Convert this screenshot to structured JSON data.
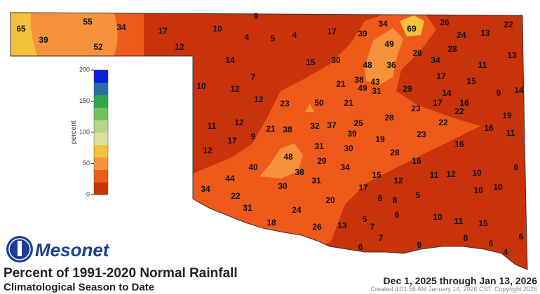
{
  "logo": "Mesonet",
  "title": "Percent of 1991-2020 Normal Rainfall",
  "subtitle": "Climatological Season to Date",
  "date_range": "Dec 1, 2025 through Jan 13, 2026",
  "created": "Created 4:01:58 AM January 14, 2026 CST. Copyright 2026",
  "legend": {
    "label": "percent",
    "range": [
      0,
      200
    ],
    "ticks": [
      0,
      50,
      100,
      150,
      200
    ],
    "colors": [
      "#c8330b",
      "#ef5a1a",
      "#f7923a",
      "#f2c23a",
      "#e1dea0",
      "#b5d58a",
      "#6cc35a",
      "#2ea84a",
      "#2a6fa8",
      "#0a1fe0"
    ]
  },
  "stations": [
    65,
    39,
    55,
    34,
    52,
    17,
    12,
    10,
    9,
    4,
    5,
    4,
    17,
    39,
    34,
    69,
    26,
    24,
    13,
    22,
    49,
    28,
    13,
    14,
    15,
    30,
    48,
    36,
    28,
    34,
    11,
    7,
    38,
    43,
    21,
    49,
    31,
    29,
    17,
    15,
    10,
    12,
    14,
    9,
    14,
    12,
    23,
    50,
    21,
    17,
    16,
    23,
    22,
    19,
    28,
    11,
    12,
    21,
    38,
    32,
    37,
    25,
    39,
    22,
    16,
    11,
    9,
    17,
    19,
    23,
    12,
    31,
    30,
    16,
    28,
    48,
    29,
    34,
    16,
    40,
    38,
    15,
    11,
    12,
    10,
    6,
    44,
    31,
    12,
    30,
    17,
    34,
    10,
    10,
    22,
    5,
    6,
    8,
    20,
    31,
    24,
    5,
    6,
    10,
    11,
    15,
    18,
    7,
    13,
    26,
    6,
    7,
    8,
    6,
    9,
    6,
    4
  ]
}
